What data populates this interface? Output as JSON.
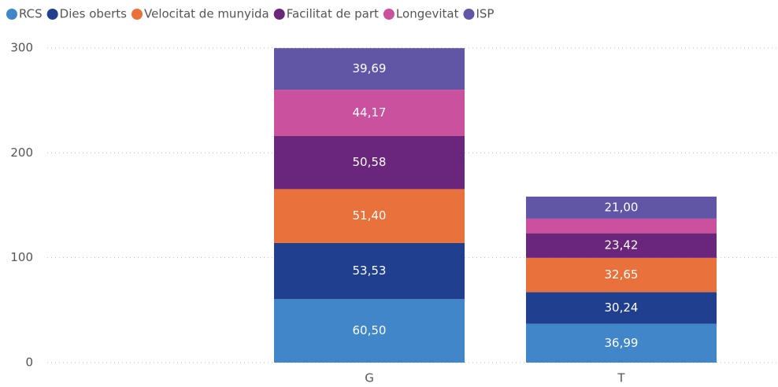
{
  "chart_data": {
    "type": "stacked_bar",
    "categories": [
      null,
      "G",
      "T"
    ],
    "series": [
      {
        "name": "RCS",
        "color": "#4186c8",
        "values": [
          null,
          60.5,
          36.99
        ],
        "value_labels": [
          null,
          "60,50",
          "36,99"
        ]
      },
      {
        "name": "Dies oberts",
        "color": "#213f8f",
        "values": [
          null,
          53.53,
          30.24
        ],
        "value_labels": [
          null,
          "53,53",
          "30,24"
        ]
      },
      {
        "name": "Velocitat de munyida",
        "color": "#e8713c",
        "values": [
          null,
          51.4,
          32.65
        ],
        "value_labels": [
          null,
          "51,40",
          "32,65"
        ]
      },
      {
        "name": "Facilitat de part",
        "color": "#69267b",
        "values": [
          null,
          50.58,
          23.42
        ],
        "value_labels": [
          null,
          "50,58",
          "23,42"
        ]
      },
      {
        "name": "Longevitat",
        "color": "#c9519d",
        "values": [
          null,
          44.17,
          14
        ],
        "value_labels": [
          null,
          "44,17",
          null
        ]
      },
      {
        "name": "ISP",
        "color": "#6155a6",
        "values": [
          null,
          39.69,
          21.0
        ],
        "value_labels": [
          null,
          "39,69",
          "21,00"
        ]
      }
    ],
    "ylim": [
      0,
      300
    ],
    "yticks": [
      0,
      100,
      200,
      300
    ],
    "grid": true,
    "legend": "top-left"
  }
}
